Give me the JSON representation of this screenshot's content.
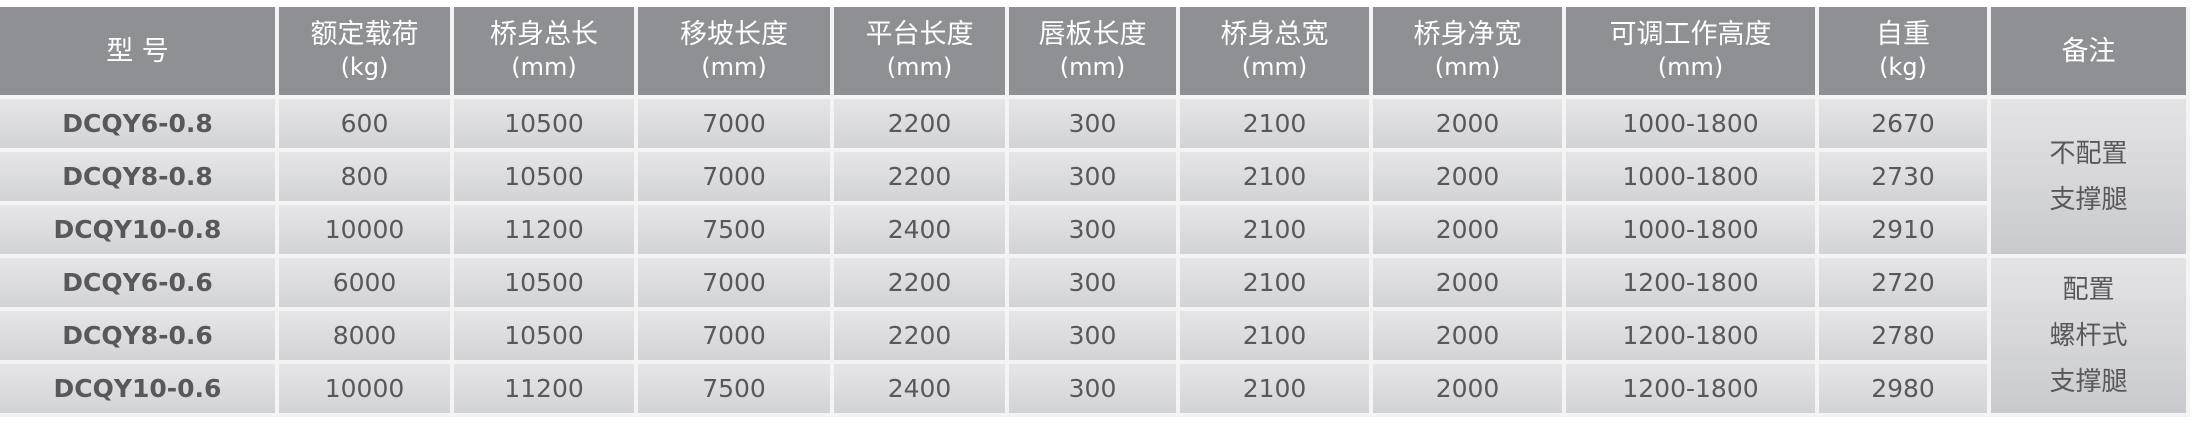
{
  "headers": [
    {
      "label": "型 号",
      "unit": ""
    },
    {
      "label": "额定载荷",
      "unit": "(kg)"
    },
    {
      "label": "桥身总长",
      "unit": "(mm)"
    },
    {
      "label": "移坡长度",
      "unit": "(mm)"
    },
    {
      "label": "平台长度",
      "unit": "(mm)"
    },
    {
      "label": "唇板长度",
      "unit": "(mm)"
    },
    {
      "label": "桥身总宽",
      "unit": "(mm)"
    },
    {
      "label": "桥身净宽",
      "unit": "(mm)"
    },
    {
      "label": "可调工作高度",
      "unit": "(mm)"
    },
    {
      "label": "自重",
      "unit": "(kg)"
    },
    {
      "label": "备注",
      "unit": ""
    }
  ],
  "rows": [
    [
      "DCQY6-0.8",
      "600",
      "10500",
      "7000",
      "2200",
      "300",
      "2100",
      "2000",
      "1000-1800",
      "2670"
    ],
    [
      "DCQY8-0.8",
      "800",
      "10500",
      "7000",
      "2200",
      "300",
      "2100",
      "2000",
      "1000-1800",
      "2730"
    ],
    [
      "DCQY10-0.8",
      "10000",
      "11200",
      "7500",
      "2400",
      "300",
      "2100",
      "2000",
      "1000-1800",
      "2910"
    ],
    [
      "DCQY6-0.6",
      "6000",
      "10500",
      "7000",
      "2200",
      "300",
      "2100",
      "2000",
      "1200-1800",
      "2720"
    ],
    [
      "DCQY8-0.6",
      "8000",
      "10500",
      "7000",
      "2200",
      "300",
      "2100",
      "2000",
      "1200-1800",
      "2780"
    ],
    [
      "DCQY10-0.6",
      "10000",
      "11200",
      "7500",
      "2400",
      "300",
      "2100",
      "2000",
      "1200-1800",
      "2980"
    ]
  ],
  "notes": [
    {
      "lines": [
        "不配置",
        "支撑腿"
      ]
    },
    {
      "lines": [
        "配置",
        "螺杆式",
        "支撑腿"
      ]
    }
  ]
}
